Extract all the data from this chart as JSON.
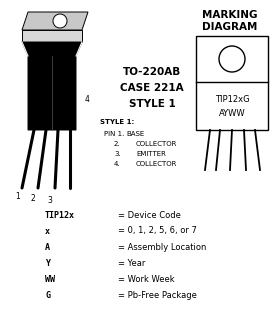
{
  "bg_color": "white",
  "marking_label1": "TIP12xG",
  "marking_label2": "AYWW",
  "legend_rows": [
    [
      "TIP12x",
      "= Device Code"
    ],
    [
      "x",
      "= 0, 1, 2, 5, 6, or 7"
    ],
    [
      "A",
      "= Assembly Location"
    ],
    [
      "Y",
      "= Year"
    ],
    [
      "WW",
      "= Work Week"
    ],
    [
      "G",
      "= Pb-Free Package"
    ]
  ],
  "package_lines": [
    "TO-220AB",
    "CASE 221A",
    "STYLE 1"
  ],
  "style_header": "STYLE 1:",
  "pin_lines": [
    [
      "PIN 1.",
      "BASE"
    ],
    [
      "2.",
      "COLLECTOR"
    ],
    [
      "3.",
      "EMITTER"
    ],
    [
      "4.",
      "COLLECTOR"
    ]
  ]
}
